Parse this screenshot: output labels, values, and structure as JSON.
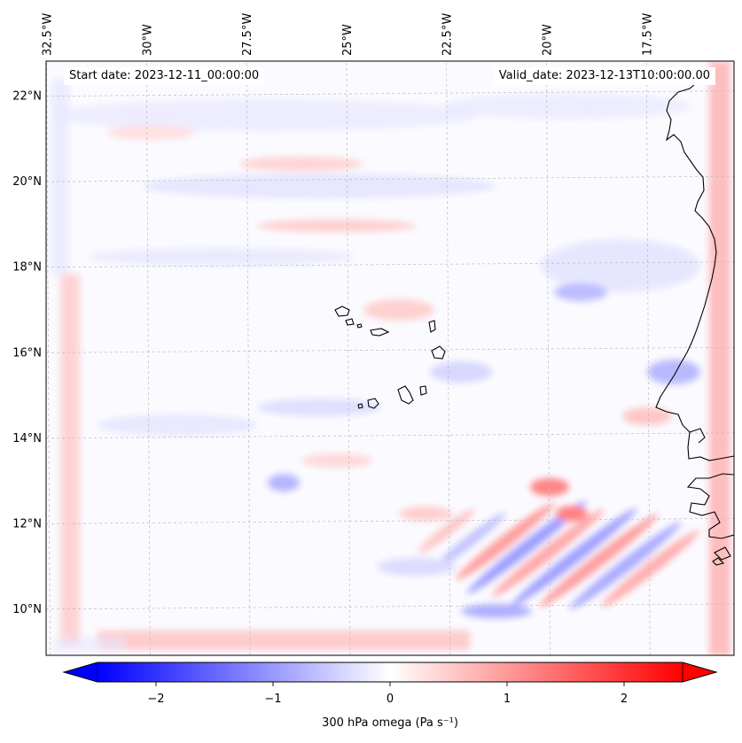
{
  "map": {
    "start_label": "Start date: 2023-12-11_00:00:00",
    "valid_label": "Valid_date: 2023-12-13T10:00:00.00",
    "lon_ticks": [
      {
        "value": -32.5,
        "label": "32.5°W"
      },
      {
        "value": -30.0,
        "label": "30°W"
      },
      {
        "value": -27.5,
        "label": "27.5°W"
      },
      {
        "value": -25.0,
        "label": "25°W"
      },
      {
        "value": -22.5,
        "label": "22.5°W"
      },
      {
        "value": -20.0,
        "label": "20°W"
      },
      {
        "value": -17.5,
        "label": "17.5°W"
      }
    ],
    "lat_ticks": [
      {
        "value": 10,
        "label": "10°N"
      },
      {
        "value": 12,
        "label": "12°N"
      },
      {
        "value": 14,
        "label": "14°N"
      },
      {
        "value": 16,
        "label": "16°N"
      },
      {
        "value": 18,
        "label": "18°N"
      },
      {
        "value": 20,
        "label": "20°N"
      },
      {
        "value": 22,
        "label": "22°N"
      }
    ],
    "extent": {
      "lon_min": -32.6,
      "lon_max": -15.4,
      "lat_min": 8.9,
      "lat_max": 22.8
    },
    "field": "300 hPa omega",
    "colormap": "bwr"
  },
  "colorbar": {
    "label": "300 hPa omega (Pa s⁻¹)",
    "range": [
      -2.5,
      2.5
    ],
    "extend": "both",
    "ticks": [
      {
        "value": -2,
        "label": "−2"
      },
      {
        "value": -1,
        "label": "−1"
      },
      {
        "value": 0,
        "label": "0"
      },
      {
        "value": 1,
        "label": "1"
      },
      {
        "value": 2,
        "label": "2"
      }
    ],
    "colors": {
      "min": "#0000ff",
      "mid": "#ffffff",
      "max": "#ff0000"
    }
  }
}
